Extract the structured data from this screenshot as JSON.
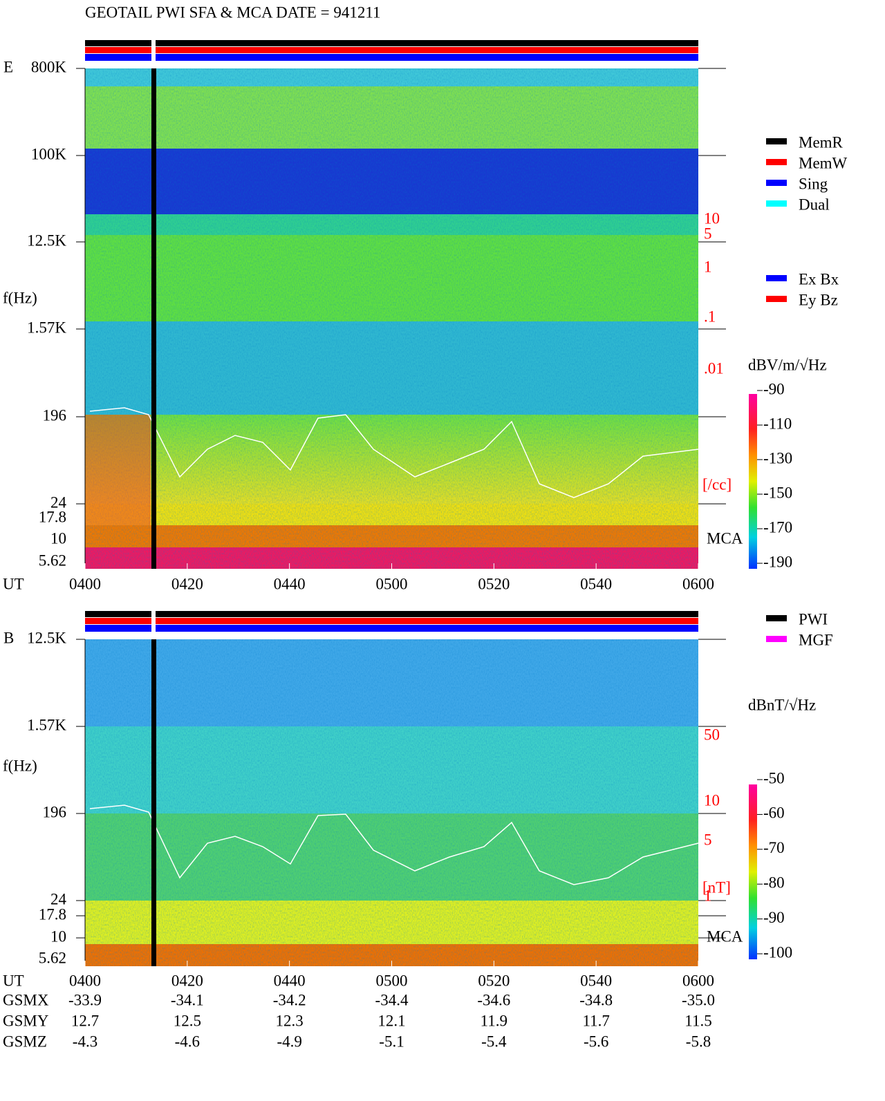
{
  "title": "GEOTAIL   PWI SFA & MCA    DATE = 941211",
  "panels": [
    {
      "label": "E",
      "ylabel": "f(Hz)",
      "freq_ticks": [
        "800K",
        "100K",
        "12.5K",
        "1.57K",
        "196",
        "24",
        "17.8",
        "10",
        "5.62"
      ],
      "mca_label": "MCA",
      "scale_ticks": [
        "10",
        "5",
        "1",
        ".1",
        ".01"
      ],
      "scale_unit": "[/cc]",
      "legend": [
        {
          "name": "MemR",
          "color": "#000000"
        },
        {
          "name": "MemW",
          "color": "#ff0000"
        },
        {
          "name": "Sing",
          "color": "#0000ff"
        },
        {
          "name": "Dual",
          "color": "#00ffff"
        },
        {
          "name": "Ex Bx",
          "color": "#0000ff"
        },
        {
          "name": "Ey Bz",
          "color": "#ff0000"
        }
      ],
      "colorbar_unit": "dBV/m/√Hz",
      "colorbar_ticks": [
        -90,
        -110,
        -130,
        -150,
        -170,
        -190
      ]
    },
    {
      "label": "B",
      "ylabel": "f(Hz)",
      "freq_ticks": [
        "12.5K",
        "1.57K",
        "196",
        "24",
        "17.8",
        "10",
        "5.62"
      ],
      "mca_label": "MCA",
      "scale_ticks": [
        "50",
        "10",
        "5",
        "1"
      ],
      "scale_unit": "[nT]",
      "legend": [
        {
          "name": "PWI",
          "color": "#000000"
        },
        {
          "name": "MGF",
          "color": "#ff00ff"
        }
      ],
      "colorbar_unit": "dBnT/√Hz",
      "colorbar_ticks": [
        -50,
        -60,
        -70,
        -80,
        -90,
        -100
      ]
    }
  ],
  "time_label": "UT",
  "time_ticks": [
    "0400",
    "0420",
    "0440",
    "0500",
    "0520",
    "0540",
    "0600"
  ],
  "orbit": [
    {
      "label": "GSMX",
      "values": [
        "-33.9",
        "-34.1",
        "-34.2",
        "-34.4",
        "-34.6",
        "-34.8",
        "-35.0"
      ]
    },
    {
      "label": "GSMY",
      "values": [
        "12.7",
        "12.5",
        "12.3",
        "12.1",
        "11.9",
        "11.7",
        "11.5"
      ]
    },
    {
      "label": "GSMZ",
      "values": [
        "-4.3",
        "-4.6",
        "-4.9",
        "-5.1",
        "-5.4",
        "-5.6",
        "-5.8"
      ]
    }
  ]
}
